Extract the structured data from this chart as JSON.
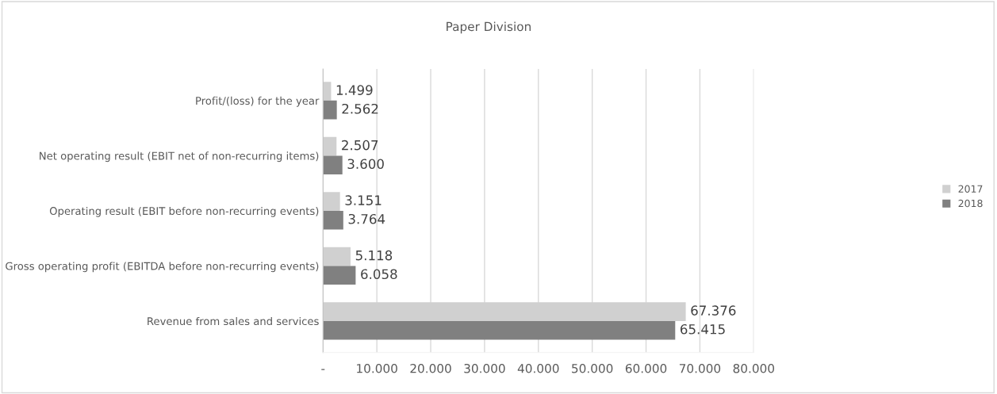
{
  "chart_data": {
    "type": "bar",
    "orientation": "horizontal",
    "title": "Paper Division",
    "categories": [
      "Profit/(loss) for the year",
      "Net operating result (EBIT net of non-recurring items)",
      "Operating result (EBIT before non-recurring events)",
      "Gross operating profit (EBITDA before non-recurring events)",
      "Revenue from sales and services"
    ],
    "series": [
      {
        "name": "2017",
        "color": "#d0d0d0",
        "values": [
          1499,
          2507,
          3151,
          5118,
          67376
        ],
        "value_labels": [
          "1.499",
          "2.507",
          "3.151",
          "5.118",
          "67.376"
        ]
      },
      {
        "name": "2018",
        "color": "#808080",
        "values": [
          2562,
          3600,
          3764,
          6058,
          65415
        ],
        "value_labels": [
          "2.562",
          "3.600",
          "3.764",
          "6.058",
          "65.415"
        ]
      }
    ],
    "xlim": [
      0,
      80000
    ],
    "xticks": [
      {
        "value": 0,
        "label": "-"
      },
      {
        "value": 10000,
        "label": "10.000"
      },
      {
        "value": 20000,
        "label": "20.000"
      },
      {
        "value": 30000,
        "label": "30.000"
      },
      {
        "value": 40000,
        "label": "40.000"
      },
      {
        "value": 50000,
        "label": "50.000"
      },
      {
        "value": 60000,
        "label": "60.000"
      },
      {
        "value": 70000,
        "label": "70.000"
      },
      {
        "value": 80000,
        "label": "80.000"
      }
    ],
    "grid": "x",
    "legend": "right"
  }
}
